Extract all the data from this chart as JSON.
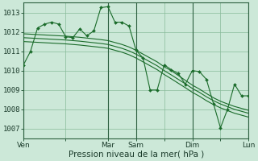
{
  "bg_color": "#cce8d8",
  "grid_color": "#88bb99",
  "line_color": "#1a6b2a",
  "marker_color": "#1a6b2a",
  "xlabel": "Pression niveau de la mer( hPa )",
  "xlabel_fontsize": 7.5,
  "ylim": [
    1006.5,
    1013.5
  ],
  "yticks": [
    1007,
    1008,
    1009,
    1010,
    1011,
    1012,
    1013
  ],
  "xtick_labels": [
    "Ven",
    "",
    "Mar",
    "Sam",
    "",
    "Dim",
    "",
    "Lun"
  ],
  "xtick_positions": [
    0,
    6,
    12,
    16,
    20,
    24,
    28,
    32
  ],
  "vlines_dark": [
    0,
    12,
    16,
    24,
    32
  ],
  "n_points": 33,
  "jagged_series": [
    1010.3,
    1011.0,
    1012.2,
    1012.4,
    1012.5,
    1012.4,
    1011.75,
    1011.7,
    1012.15,
    1011.8,
    1012.05,
    1013.25,
    1013.3,
    1012.5,
    1012.5,
    1012.3,
    1011.05,
    1010.65,
    1009.0,
    1009.0,
    1010.3,
    1010.05,
    1009.85,
    1009.3,
    1010.0,
    1009.95,
    1009.55,
    1008.3,
    1007.05,
    1008.0,
    1009.3,
    1008.7,
    1008.7
  ],
  "smooth_series": [
    [
      1011.9,
      1011.88,
      1011.86,
      1011.84,
      1011.82,
      1011.8,
      1011.78,
      1011.75,
      1011.72,
      1011.68,
      1011.64,
      1011.6,
      1011.55,
      1011.45,
      1011.35,
      1011.22,
      1011.05,
      1010.85,
      1010.65,
      1010.45,
      1010.2,
      1010.0,
      1009.75,
      1009.5,
      1009.25,
      1009.05,
      1008.82,
      1008.6,
      1008.42,
      1008.28,
      1008.15,
      1008.05,
      1007.95
    ],
    [
      1011.7,
      1011.68,
      1011.66,
      1011.64,
      1011.62,
      1011.6,
      1011.58,
      1011.55,
      1011.52,
      1011.48,
      1011.44,
      1011.4,
      1011.35,
      1011.25,
      1011.15,
      1011.02,
      1010.85,
      1010.65,
      1010.45,
      1010.25,
      1010.0,
      1009.78,
      1009.55,
      1009.32,
      1009.08,
      1008.88,
      1008.65,
      1008.45,
      1008.28,
      1008.14,
      1008.0,
      1007.9,
      1007.8
    ],
    [
      1011.5,
      1011.48,
      1011.46,
      1011.44,
      1011.42,
      1011.4,
      1011.38,
      1011.35,
      1011.32,
      1011.28,
      1011.24,
      1011.2,
      1011.15,
      1011.05,
      1010.95,
      1010.82,
      1010.65,
      1010.45,
      1010.25,
      1010.05,
      1009.8,
      1009.58,
      1009.35,
      1009.12,
      1008.88,
      1008.68,
      1008.45,
      1008.25,
      1008.08,
      1007.94,
      1007.8,
      1007.7,
      1007.6
    ]
  ]
}
